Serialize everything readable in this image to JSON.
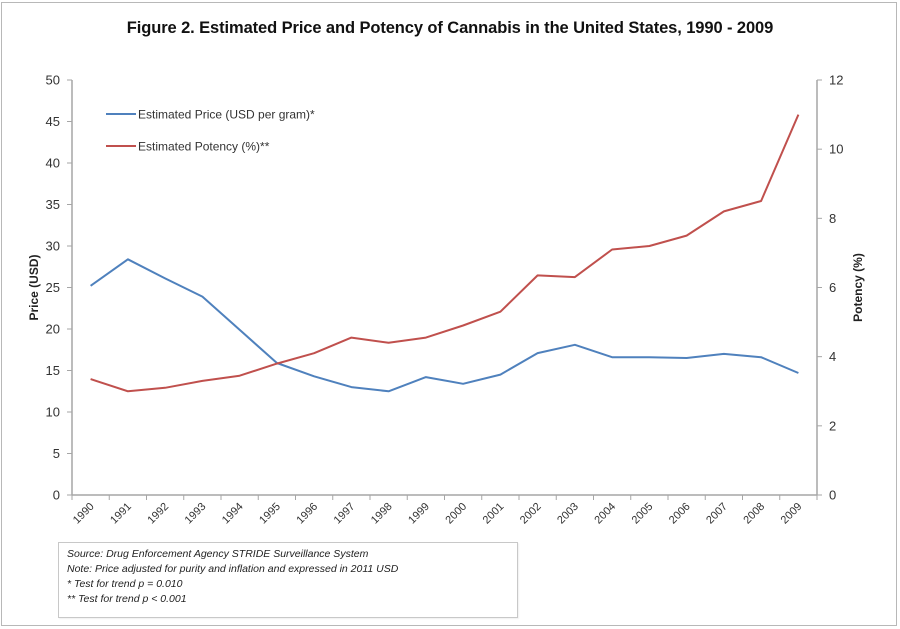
{
  "chart_data": {
    "type": "line",
    "title": "Figure 2. Estimated Price and Potency of Cannabis in the United States, 1990 - 2009",
    "xlabel": "",
    "ylabel": "Price (USD)",
    "y2label": "Potency (%)",
    "ylim": [
      0,
      50
    ],
    "y2lim": [
      0,
      12
    ],
    "yticks": [
      0,
      5,
      10,
      15,
      20,
      25,
      30,
      35,
      40,
      45,
      50
    ],
    "y2ticks": [
      0,
      2,
      4,
      6,
      8,
      10,
      12
    ],
    "grid": false,
    "legend_position": "top-left",
    "categories": [
      "1990",
      "1991",
      "1992",
      "1993",
      "1994",
      "1995",
      "1996",
      "1997",
      "1998",
      "1999",
      "2000",
      "2001",
      "2002",
      "2003",
      "2004",
      "2005",
      "2006",
      "2007",
      "2008",
      "2009"
    ],
    "series": [
      {
        "name": "Estimated Price (USD per gram)*",
        "axis": "left",
        "color": "#4f81bd",
        "values": [
          25.2,
          28.4,
          26.1,
          23.9,
          19.9,
          15.9,
          14.3,
          13.0,
          12.5,
          14.2,
          13.4,
          14.5,
          17.1,
          18.1,
          16.6,
          16.6,
          16.5,
          17.0,
          16.6,
          14.7
        ]
      },
      {
        "name": "Estimated Potency (%)**",
        "axis": "right",
        "color": "#c0504d",
        "values": [
          3.35,
          3.0,
          3.1,
          3.3,
          3.45,
          3.8,
          4.1,
          4.55,
          4.4,
          4.55,
          4.9,
          5.3,
          6.35,
          6.3,
          7.1,
          7.2,
          7.5,
          8.2,
          8.5,
          11.0
        ]
      }
    ],
    "notes": [
      "Source: Drug Enforcement Agency STRIDE Surveillance System",
      "Note: Price adjusted for purity and inflation and expressed in 2011 USD",
      "* Test for trend p = 0.010",
      "** Test for trend p < 0.001"
    ]
  }
}
